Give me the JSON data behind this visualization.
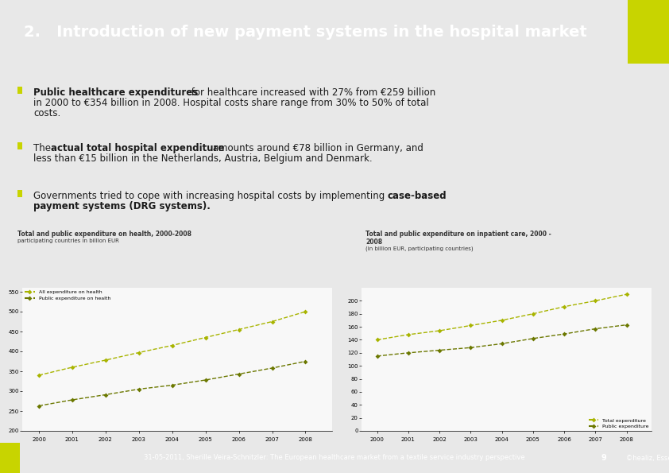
{
  "title": "2.   Introduction of new payment systems in the hospital market",
  "title_bg": "#5b8fa8",
  "title_fg": "#ffffff",
  "accent_square_color": "#c8d400",
  "bullet_color": "#c8d400",
  "chart1": {
    "title": "Total and public expenditure on health, 2000-2008",
    "subtitle": "participating countries in billion EUR",
    "years": [
      2000,
      2001,
      2002,
      2003,
      2004,
      2005,
      2006,
      2007,
      2008
    ],
    "total_health": [
      340,
      360,
      378,
      397,
      415,
      435,
      455,
      475,
      500
    ],
    "public_health": [
      263,
      278,
      291,
      305,
      315,
      328,
      343,
      358,
      375
    ],
    "legend_total": "All expenditure on health",
    "legend_public": "Public expenditure on health",
    "color_total": "#a8b400",
    "color_public": "#6b7800",
    "ylim": [
      200,
      560
    ],
    "yticks": [
      200,
      250,
      300,
      350,
      400,
      450,
      500,
      550
    ]
  },
  "chart2": {
    "title": "Total and public expenditure on inpatient care, 2000 -",
    "title2": "2008",
    "subtitle": "(in billion EUR, participating countries)",
    "years": [
      2000,
      2001,
      2002,
      2003,
      2004,
      2005,
      2006,
      2007,
      2008
    ],
    "total_inpatient": [
      140,
      148,
      154,
      162,
      170,
      180,
      191,
      200,
      210
    ],
    "public_inpatient": [
      115,
      120,
      124,
      128,
      134,
      142,
      149,
      157,
      163
    ],
    "legend_total": "Total expenditure",
    "legend_public": "Public expenditure",
    "color_total": "#a8b400",
    "color_public": "#6b7800",
    "ylim": [
      0,
      220
    ],
    "yticks": [
      0,
      20,
      40,
      60,
      80,
      100,
      120,
      140,
      160,
      180,
      200
    ]
  },
  "footer_text": "31-05-2011, Sherille Veira-Schnitzler: The European healthcare market from a textile service industry perspective",
  "footer_page": "9",
  "footer_brand": "©healiz, Essen",
  "footer_bg": "#5b8fa8",
  "footer_fg": "#ffffff",
  "bg_color": "#e8e8e8",
  "content_bg": "#ffffff"
}
